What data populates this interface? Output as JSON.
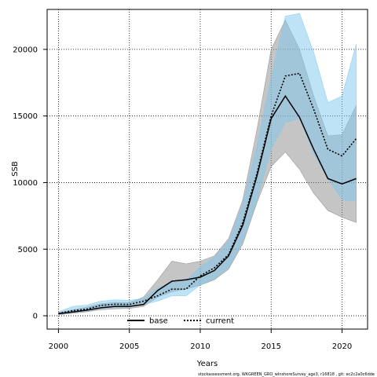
{
  "chart_data": {
    "type": "line",
    "xlabel": "Years",
    "ylabel": "SSB",
    "xlim": [
      1999.2,
      2021.8
    ],
    "ylim": [
      -1000,
      23000
    ],
    "xticks": [
      2000,
      2005,
      2010,
      2015,
      2020
    ],
    "yticks": [
      0,
      5000,
      10000,
      15000,
      20000
    ],
    "grid": true,
    "legend_position": "bottom-center",
    "x": [
      2000,
      2001,
      2002,
      2003,
      2004,
      2005,
      2006,
      2007,
      2008,
      2009,
      2010,
      2011,
      2012,
      2013,
      2014,
      2015,
      2016,
      2017,
      2018,
      2019,
      2020,
      2021
    ],
    "series": [
      {
        "name": "base",
        "color": "#000000",
        "line_style": "solid",
        "band_color": "#8c8c8c",
        "values": [
          150,
          280,
          420,
          600,
          700,
          700,
          850,
          1900,
          2600,
          2700,
          2900,
          3400,
          4500,
          6800,
          10500,
          14800,
          16500,
          14900,
          12500,
          10300,
          9900,
          10300
        ],
        "lower": [
          80,
          180,
          300,
          450,
          520,
          550,
          700,
          1400,
          1800,
          2000,
          2300,
          2700,
          3500,
          5400,
          8500,
          11200,
          12300,
          11000,
          9200,
          7900,
          7400,
          7000
        ],
        "upper": [
          250,
          450,
          650,
          900,
          1000,
          980,
          1400,
          2700,
          4100,
          3900,
          4100,
          4500,
          5800,
          8700,
          14000,
          20000,
          22200,
          20000,
          16500,
          13500,
          13600,
          15800
        ]
      },
      {
        "name": "current",
        "color": "#000000",
        "line_style": "dotted",
        "band_color": "#7ec8f0",
        "values": [
          180,
          380,
          500,
          780,
          870,
          850,
          1100,
          1500,
          2000,
          2000,
          3000,
          3600,
          4600,
          7000,
          10700,
          15000,
          18000,
          18200,
          15500,
          12500,
          12000,
          13300
        ],
        "lower": [
          100,
          250,
          350,
          550,
          650,
          650,
          850,
          1100,
          1500,
          1500,
          2300,
          2800,
          3600,
          5600,
          8700,
          12500,
          14500,
          14800,
          12200,
          10300,
          8700,
          8600
        ],
        "upper": [
          300,
          700,
          800,
          1100,
          1200,
          1150,
          1300,
          2100,
          2500,
          2600,
          3700,
          4400,
          5600,
          8400,
          12800,
          17900,
          22500,
          22700,
          19800,
          16000,
          16500,
          20400
        ]
      }
    ],
    "footer": "stockassessment.org, WKGREEN_GRO_wInshoreSurvey_age3, r16818 , git: ec2c2a0c6dde"
  }
}
